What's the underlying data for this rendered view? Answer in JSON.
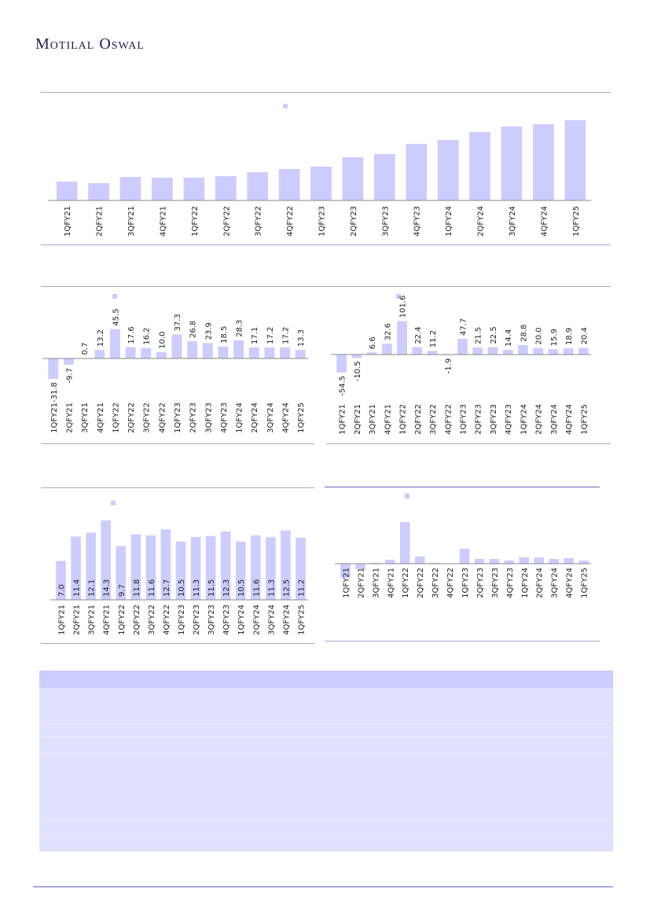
{
  "header": {
    "brand": "Motilal Oswal"
  },
  "chart_data": [
    {
      "type": "bar",
      "id": "top",
      "categories": [
        "1QFY21",
        "2QFY21",
        "3QFY21",
        "4QFY21",
        "1QFY22",
        "2QFY22",
        "3QFY22",
        "4QFY22",
        "1QFY23",
        "2QFY23",
        "3QFY23",
        "4QFY23",
        "1QFY24",
        "2QFY24",
        "3QFY24",
        "4QFY24",
        "1QFY25"
      ],
      "values": [
        24,
        22,
        30,
        29,
        29,
        31,
        36,
        40,
        43,
        55,
        59,
        72,
        77,
        87,
        94,
        97,
        102
      ],
      "show_value_labels": false,
      "legend": "top-center",
      "bar_color": "#ccccff"
    },
    {
      "type": "bar",
      "id": "mid-left",
      "categories": [
        "1QFY21",
        "2QFY21",
        "3QFY21",
        "4QFY21",
        "1QFY22",
        "2QFY22",
        "3QFY22",
        "4QFY22",
        "1QFY23",
        "2QFY23",
        "3QFY23",
        "4QFY23",
        "1QFY24",
        "2QFY24",
        "3QFY24",
        "4QFY24",
        "1QFY25"
      ],
      "values": [
        -31.8,
        -9.7,
        0.7,
        13.2,
        45.5,
        17.6,
        16.2,
        10.0,
        37.3,
        26.8,
        23.9,
        18.5,
        28.3,
        17.1,
        17.2,
        17.2,
        13.3
      ],
      "labels": [
        "-31.8",
        "-9.7",
        "0.7",
        "13.2",
        "45.5",
        "17.6",
        "16.2",
        "10.0",
        "37.3",
        "26.8",
        "23.9",
        "18.5",
        "28.3",
        "17.1",
        "17.2",
        "17.2",
        "13.3"
      ],
      "show_value_labels": true,
      "legend": "top-center",
      "bar_color": "#ccccff"
    },
    {
      "type": "bar",
      "id": "mid-right",
      "categories": [
        "1QFY21",
        "2QFY21",
        "3QFY21",
        "4QFY21",
        "1QFY22",
        "2QFY22",
        "3QFY22",
        "4QFY22",
        "1QFY23",
        "2QFY23",
        "3QFY23",
        "4QFY23",
        "1QFY24",
        "2QFY24",
        "3QFY24",
        "4QFY24",
        "1QFY25"
      ],
      "values": [
        -54.5,
        -10.5,
        6.6,
        32.6,
        101.6,
        22.4,
        11.2,
        -1.9,
        47.7,
        21.5,
        22.5,
        14.4,
        28.8,
        20.0,
        15.9,
        18.9,
        20.4
      ],
      "labels": [
        "-54.5",
        "-10.5",
        "6.6",
        "32.6",
        "101.6",
        "22.4",
        "11.2",
        "-1.9",
        "47.7",
        "21.5",
        "22.5",
        "14.4",
        "28.8",
        "20.0",
        "15.9",
        "18.9",
        "20.4"
      ],
      "show_value_labels": true,
      "legend": "top-center",
      "bar_color": "#ccccff"
    },
    {
      "type": "bar",
      "id": "bottom-left",
      "categories": [
        "1QFY21",
        "2QFY21",
        "3QFY21",
        "4QFY21",
        "1QFY22",
        "2QFY22",
        "3QFY22",
        "4QFY22",
        "1QFY23",
        "2QFY23",
        "3QFY23",
        "4QFY23",
        "1QFY24",
        "2QFY24",
        "3QFY24",
        "4QFY24",
        "1QFY25"
      ],
      "values": [
        7.0,
        11.4,
        12.1,
        14.3,
        9.7,
        11.8,
        11.6,
        12.7,
        10.5,
        11.3,
        11.5,
        12.3,
        10.5,
        11.6,
        11.3,
        12.5,
        11.2
      ],
      "labels": [
        "7.0",
        "11.4",
        "12.1",
        "14.3",
        "9.7",
        "11.8",
        "11.6",
        "12.7",
        "10.5",
        "11.3",
        "11.5",
        "12.3",
        "10.5",
        "11.6",
        "11.3",
        "12.5",
        "11.2"
      ],
      "show_value_labels": true,
      "legend": "top-center",
      "bar_color": "#ccccff"
    },
    {
      "type": "bar",
      "id": "bottom-right",
      "categories": [
        "1QFY21",
        "2QFY21",
        "3QFY21",
        "4QFY21",
        "1QFY22",
        "2QFY22",
        "3QFY22",
        "4QFY22",
        "1QFY23",
        "2QFY23",
        "3QFY23",
        "4QFY23",
        "1QFY24",
        "2QFY24",
        "3QFY24",
        "4QFY24",
        "1QFY25"
      ],
      "values": [
        -18,
        -7,
        1,
        5,
        53,
        9,
        1,
        0,
        19,
        6,
        6,
        4,
        8,
        8,
        6,
        7,
        4
      ],
      "show_value_labels": false,
      "legend": "top-center",
      "bar_color": "#ccccff"
    }
  ]
}
